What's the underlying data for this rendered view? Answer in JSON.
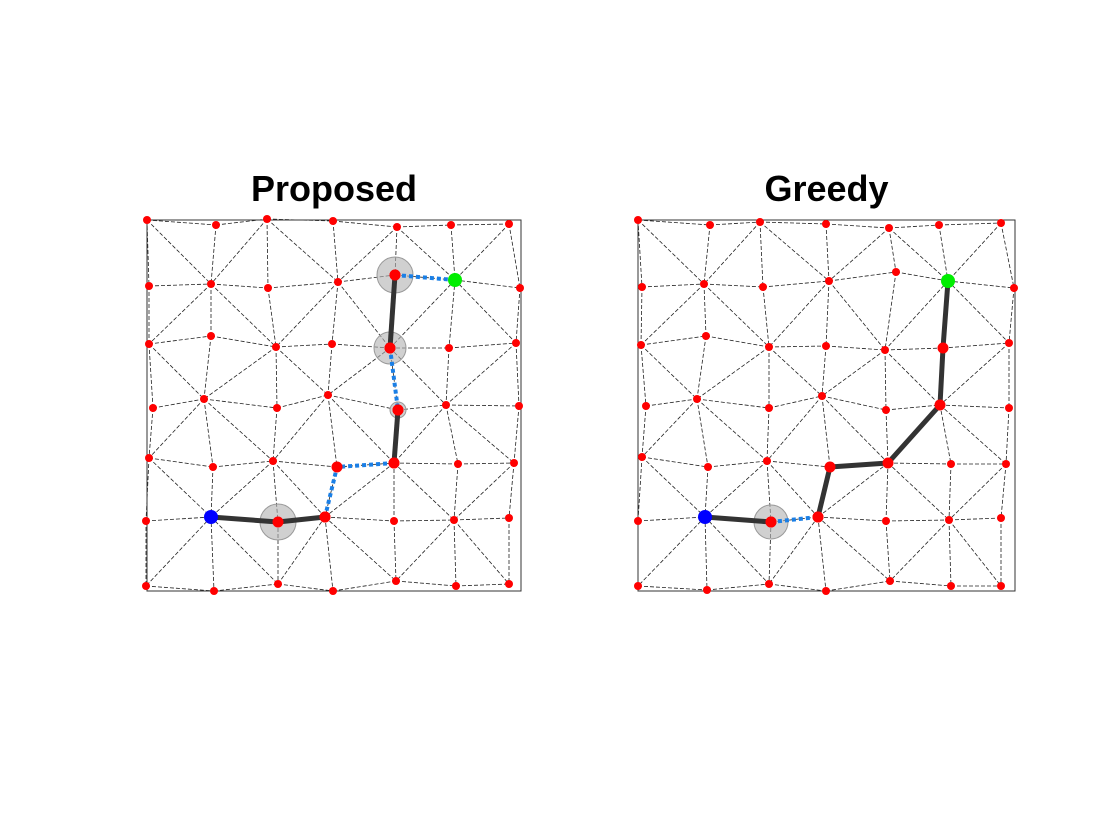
{
  "panels": [
    {
      "title": "Proposed",
      "colors": {
        "node": "#ff0000",
        "start": "#0000ff",
        "goal": "#00ee00",
        "solid_path": "#333333",
        "dashed_path": "#1a7fe6",
        "halo": "#b0b0b0"
      }
    },
    {
      "title": "Greedy",
      "colors": {
        "node": "#ff0000",
        "start": "#0000ff",
        "goal": "#00ee00",
        "solid_path": "#333333",
        "dashed_path": "#1a7fe6",
        "halo": "#b0b0b0"
      }
    }
  ]
}
